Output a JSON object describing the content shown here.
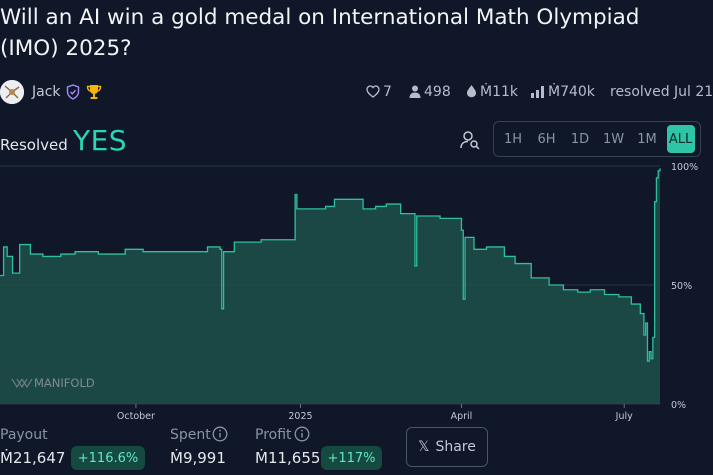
{
  "market": {
    "title": "Will an AI win a gold medal on International Math Olympiad (IMO) 2025?",
    "author": "Jack",
    "stats": {
      "likes": "7",
      "traders": "498",
      "liquidity": "Ṁ11k",
      "volume": "Ṁ740k",
      "resolved_date": "resolved Jul 21"
    },
    "resolved_label": "Resolved",
    "resolved_value": "YES"
  },
  "time_ranges": [
    "1H",
    "6H",
    "1D",
    "1W",
    "1M",
    "ALL"
  ],
  "selected_range": "ALL",
  "watermark": "MANIFOLD",
  "chart_data": {
    "type": "area",
    "x_unit": "date",
    "y_unit": "probability %",
    "ylim": [
      0,
      100
    ],
    "y_ticks": [
      "100%",
      "50%",
      "0%"
    ],
    "x_ticks": [
      "October",
      "2025",
      "April",
      "July"
    ],
    "x_tick_dates": [
      "2024-10-01",
      "2025-01-01",
      "2025-04-01",
      "2025-07-01"
    ],
    "xlim": [
      "2024-07-17",
      "2025-07-21"
    ],
    "grid": true,
    "series": [
      {
        "points": [
          [
            "2024-07-17",
            54
          ],
          [
            "2024-07-19",
            66
          ],
          [
            "2024-07-21",
            62
          ],
          [
            "2024-07-24",
            55
          ],
          [
            "2024-07-28",
            67
          ],
          [
            "2024-08-03",
            63
          ],
          [
            "2024-08-10",
            62
          ],
          [
            "2024-08-20",
            63
          ],
          [
            "2024-08-28",
            64
          ],
          [
            "2024-09-10",
            63
          ],
          [
            "2024-09-25",
            65
          ],
          [
            "2024-10-05",
            64
          ],
          [
            "2024-10-20",
            64
          ],
          [
            "2024-11-05",
            64
          ],
          [
            "2024-11-10",
            66
          ],
          [
            "2024-11-17",
            65
          ],
          [
            "2024-11-18",
            40
          ],
          [
            "2024-11-19",
            64
          ],
          [
            "2024-11-25",
            68
          ],
          [
            "2024-12-05",
            68
          ],
          [
            "2024-12-10",
            69
          ],
          [
            "2024-12-20",
            69
          ],
          [
            "2024-12-27",
            69
          ],
          [
            "2024-12-29",
            88
          ],
          [
            "2024-12-30",
            82
          ],
          [
            "2025-01-15",
            83
          ],
          [
            "2025-01-20",
            86
          ],
          [
            "2025-02-05",
            82
          ],
          [
            "2025-02-12",
            83
          ],
          [
            "2025-02-18",
            84
          ],
          [
            "2025-02-26",
            80
          ],
          [
            "2025-03-05",
            80
          ],
          [
            "2025-03-06",
            58
          ],
          [
            "2025-03-07",
            79
          ],
          [
            "2025-03-20",
            78
          ],
          [
            "2025-04-01",
            73
          ],
          [
            "2025-04-02",
            44
          ],
          [
            "2025-04-03",
            70
          ],
          [
            "2025-04-08",
            65
          ],
          [
            "2025-04-15",
            66
          ],
          [
            "2025-04-25",
            62
          ],
          [
            "2025-05-01",
            59
          ],
          [
            "2025-05-10",
            53
          ],
          [
            "2025-05-20",
            50
          ],
          [
            "2025-05-28",
            48
          ],
          [
            "2025-06-05",
            47
          ],
          [
            "2025-06-12",
            48
          ],
          [
            "2025-06-20",
            46
          ],
          [
            "2025-06-28",
            45
          ],
          [
            "2025-07-05",
            42
          ],
          [
            "2025-07-10",
            38
          ],
          [
            "2025-07-12",
            29
          ],
          [
            "2025-07-13",
            34
          ],
          [
            "2025-07-14",
            18
          ],
          [
            "2025-07-15",
            22
          ],
          [
            "2025-07-16",
            19
          ],
          [
            "2025-07-17",
            28
          ],
          [
            "2025-07-18",
            85
          ],
          [
            "2025-07-19",
            95
          ],
          [
            "2025-07-20",
            98
          ],
          [
            "2025-07-21",
            99
          ]
        ]
      }
    ]
  },
  "position": {
    "payout_label": "Payout",
    "payout_value": "Ṁ21,647",
    "payout_pct": "+116.6%",
    "spent_label": "Spent",
    "spent_value": "Ṁ9,991",
    "profit_label": "Profit",
    "profit_value": "Ṁ11,655",
    "profit_pct": "+117%",
    "share_label": "Share"
  },
  "colors": {
    "accent": "#2dd4b6",
    "area_fill": "#1c4d47",
    "line": "#2fbf9e",
    "background": "#0f1729"
  },
  "icons": [
    "heart-icon",
    "user-icon",
    "droplet-icon",
    "bar-chart-icon",
    "user-search-icon",
    "info-icon",
    "x-logo-icon",
    "shield-check-icon",
    "trophy-icon"
  ]
}
